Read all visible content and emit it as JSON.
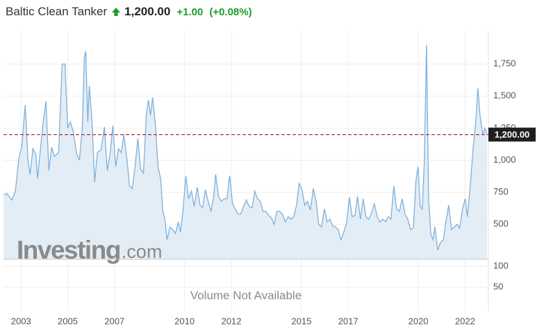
{
  "header": {
    "title": "Baltic Clean Tanker",
    "change": "+1.00",
    "change_pct": "(+0.08%)"
  },
  "chart_data": {
    "type": "area",
    "color": "#7eb0d9",
    "fill": "#e3edf6",
    "x": [
      2002.26,
      2002.4,
      2002.61,
      2002.76,
      2002.91,
      2003.03,
      2003.18,
      2003.3,
      2003.39,
      2003.51,
      2003.63,
      2003.71,
      2003.83,
      2003.95,
      2004.07,
      2004.19,
      2004.31,
      2004.43,
      2004.61,
      2004.76,
      2004.88,
      2005.0,
      2005.11,
      2005.24,
      2005.38,
      2005.5,
      2005.62,
      2005.71,
      2005.77,
      2005.86,
      2005.92,
      2006.04,
      2006.15,
      2006.27,
      2006.42,
      2006.57,
      2006.69,
      2006.81,
      2006.93,
      2007.05,
      2007.17,
      2007.29,
      2007.4,
      2007.55,
      2007.64,
      2007.76,
      2007.88,
      2008.0,
      2008.12,
      2008.24,
      2008.36,
      2008.45,
      2008.54,
      2008.63,
      2008.74,
      2008.86,
      2008.98,
      2009.07,
      2009.15,
      2009.25,
      2009.37,
      2009.49,
      2009.61,
      2009.73,
      2009.82,
      2009.93,
      2010.05,
      2010.17,
      2010.29,
      2010.41,
      2010.54,
      2010.66,
      2010.77,
      2010.89,
      2011.01,
      2011.13,
      2011.25,
      2011.33,
      2011.45,
      2011.57,
      2011.69,
      2011.81,
      2011.93,
      2012.05,
      2012.17,
      2012.29,
      2012.4,
      2012.52,
      2012.64,
      2012.76,
      2012.89,
      2013.0,
      2013.12,
      2013.24,
      2013.36,
      2013.48,
      2013.6,
      2013.72,
      2013.83,
      2013.95,
      2014.07,
      2014.19,
      2014.31,
      2014.43,
      2014.55,
      2014.67,
      2014.79,
      2014.9,
      2015.02,
      2015.14,
      2015.26,
      2015.38,
      2015.51,
      2015.63,
      2015.74,
      2015.86,
      2015.98,
      2016.1,
      2016.22,
      2016.33,
      2016.45,
      2016.57,
      2016.69,
      2016.81,
      2016.93,
      2017.05,
      2017.17,
      2017.29,
      2017.4,
      2017.52,
      2017.64,
      2017.76,
      2017.88,
      2018.0,
      2018.12,
      2018.24,
      2018.36,
      2018.48,
      2018.6,
      2018.71,
      2018.83,
      2018.95,
      2019.07,
      2019.19,
      2019.31,
      2019.43,
      2019.55,
      2019.67,
      2019.79,
      2019.9,
      2019.99,
      2020.08,
      2020.17,
      2020.26,
      2020.35,
      2020.44,
      2020.54,
      2020.63,
      2020.71,
      2020.83,
      2020.95,
      2021.07,
      2021.18,
      2021.3,
      2021.42,
      2021.54,
      2021.66,
      2021.77,
      2021.89,
      2022.01,
      2022.1,
      2022.22,
      2022.35,
      2022.46,
      2022.55,
      2022.64,
      2022.76,
      2022.85,
      2022.94
    ],
    "values": [
      730,
      740,
      690,
      760,
      1020,
      1100,
      1430,
      1000,
      890,
      1090,
      1050,
      860,
      1080,
      1300,
      1460,
      920,
      1100,
      1030,
      1060,
      1750,
      1750,
      1250,
      1300,
      1220,
      1050,
      1000,
      1250,
      1800,
      1850,
      1300,
      1580,
      1300,
      830,
      1060,
      1080,
      1260,
      920,
      1050,
      1270,
      950,
      1090,
      1060,
      1200,
      980,
      800,
      780,
      950,
      1170,
      930,
      900,
      1350,
      1470,
      1350,
      1490,
      1300,
      950,
      850,
      600,
      550,
      380,
      480,
      460,
      430,
      520,
      440,
      600,
      880,
      700,
      760,
      640,
      790,
      650,
      630,
      770,
      680,
      600,
      720,
      890,
      720,
      680,
      700,
      700,
      880,
      660,
      620,
      580,
      580,
      640,
      690,
      640,
      630,
      760,
      700,
      680,
      600,
      600,
      570,
      550,
      500,
      600,
      600,
      580,
      520,
      560,
      540,
      560,
      650,
      820,
      770,
      650,
      680,
      610,
      780,
      680,
      500,
      480,
      620,
      520,
      540,
      490,
      480,
      460,
      380,
      440,
      510,
      710,
      560,
      570,
      720,
      540,
      700,
      560,
      540,
      590,
      660,
      560,
      520,
      540,
      520,
      560,
      540,
      800,
      620,
      600,
      700,
      580,
      540,
      460,
      470,
      840,
      950,
      640,
      620,
      1000,
      1900,
      700,
      420,
      380,
      480,
      300,
      360,
      380,
      520,
      650,
      460,
      480,
      500,
      470,
      620,
      700,
      560,
      800,
      1100,
      1300,
      1560,
      1350,
      1200,
      1250,
      1200
    ],
    "xlim": [
      2002.25,
      2023.0
    ],
    "xticks": [
      2003,
      2005,
      2007,
      2010,
      2012,
      2015,
      2017,
      2020,
      2022
    ],
    "ylim": [
      228,
      2005
    ],
    "yticks": [
      500,
      750,
      {
        "value": 1000,
        "label": "1,000"
      },
      {
        "value": 1250,
        "label": "1,250"
      },
      {
        "value": 1500,
        "label": "1,500"
      },
      {
        "value": 1750,
        "label": "1,750"
      }
    ],
    "last": {
      "value": 1200,
      "label": "1,200.00"
    },
    "last_color": "#a83232",
    "grid": true,
    "volume_ylim": [
      0,
      117
    ],
    "volume_yticks": [
      50,
      100
    ],
    "volume_note": "Volume Not Available",
    "watermark": "Investing",
    "watermark_suffix": ".com"
  }
}
